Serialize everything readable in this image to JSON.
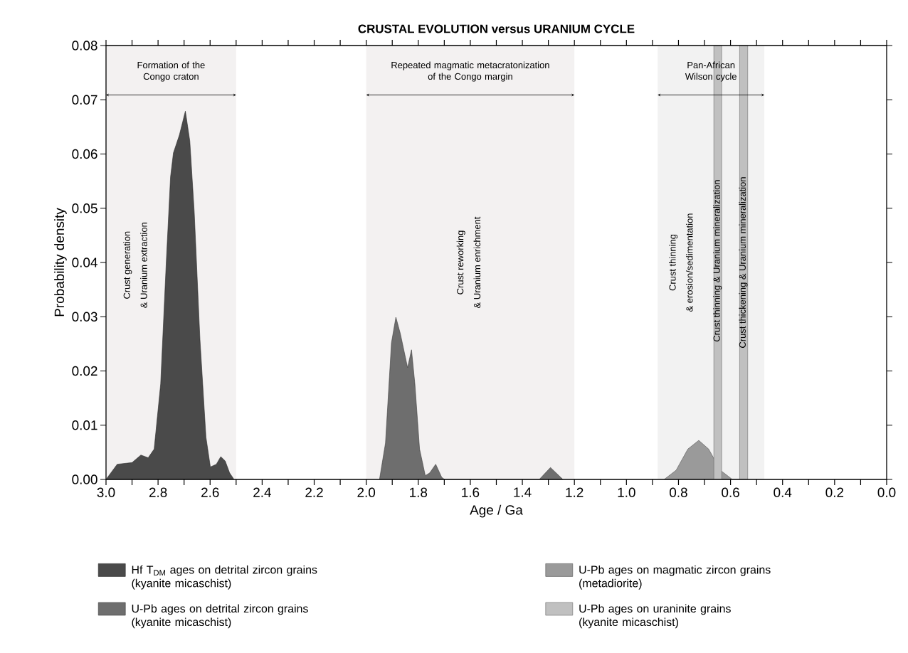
{
  "chart_data": {
    "type": "area",
    "title": "CRUSTAL EVOLUTION versus URANIUM CYCLE",
    "xlabel": "Age / Ga",
    "ylabel": "Probability density",
    "xlim": [
      3.0,
      0.0
    ],
    "ylim": [
      0,
      0.08
    ],
    "xticks": [
      {
        "value": 3.0,
        "label": "3.0"
      },
      {
        "value": 2.9,
        "label": null
      },
      {
        "value": 2.8,
        "label": "2.8"
      },
      {
        "value": 2.7,
        "label": null
      },
      {
        "value": 2.6,
        "label": "2.6"
      },
      {
        "value": 2.5,
        "label": null
      },
      {
        "value": 2.4,
        "label": "2.4"
      },
      {
        "value": 2.3,
        "label": null
      },
      {
        "value": 2.2,
        "label": "2.2"
      },
      {
        "value": 2.1,
        "label": null
      },
      {
        "value": 2.0,
        "label": "2.0"
      },
      {
        "value": 1.9,
        "label": null
      },
      {
        "value": 1.8,
        "label": "1.8"
      },
      {
        "value": 1.7,
        "label": null
      },
      {
        "value": 1.6,
        "label": "1.6"
      },
      {
        "value": 1.5,
        "label": null
      },
      {
        "value": 1.4,
        "label": "1.4"
      },
      {
        "value": 1.3,
        "label": null
      },
      {
        "value": 1.2,
        "label": "1.2"
      },
      {
        "value": 1.1,
        "label": null
      },
      {
        "value": 1.0,
        "label": "1.0"
      },
      {
        "value": 0.9,
        "label": null
      },
      {
        "value": 0.8,
        "label": "0.8"
      },
      {
        "value": 0.7,
        "label": null
      },
      {
        "value": 0.6,
        "label": "0.6"
      },
      {
        "value": 0.5,
        "label": null
      },
      {
        "value": 0.4,
        "label": "0.4"
      },
      {
        "value": 0.3,
        "label": null
      },
      {
        "value": 0.2,
        "label": "0.2"
      },
      {
        "value": 0.1,
        "label": null
      },
      {
        "value": 0.0,
        "label": "0.0"
      }
    ],
    "yticks": [
      {
        "value": 0,
        "label": "0.00"
      },
      {
        "value": 0.01,
        "label": "0.01"
      },
      {
        "value": 0.02,
        "label": "0.02"
      },
      {
        "value": 0.03,
        "label": "0.03"
      },
      {
        "value": 0.04,
        "label": "0.04"
      },
      {
        "value": 0.05,
        "label": "0.05"
      },
      {
        "value": 0.06,
        "label": "0.06"
      },
      {
        "value": 0.07,
        "label": "0.07"
      },
      {
        "value": 0.08,
        "label": "0.08"
      }
    ],
    "legend": "bottom",
    "series": [
      {
        "name": "Hf T$_{DM}$ ages on detrital zircon grains (kyanite micaschist)",
        "color": "#4a4a4a",
        "x": [
          3.0,
          2.957,
          2.9,
          2.866,
          2.838,
          2.815,
          2.79,
          2.769,
          2.752,
          2.741,
          2.718,
          2.695,
          2.678,
          2.661,
          2.639,
          2.616,
          2.599,
          2.576,
          2.559,
          2.542,
          2.525,
          2.508
        ],
        "values": [
          0,
          0.0028,
          0.0031,
          0.0045,
          0.004,
          0.0056,
          0.0176,
          0.0395,
          0.0558,
          0.0602,
          0.0635,
          0.0679,
          0.0624,
          0.0493,
          0.0258,
          0.0078,
          0.0023,
          0.0028,
          0.0042,
          0.0034,
          0.0012,
          0
        ]
      },
      {
        "name": "U-Pb ages on detrital zircon grains (kyanite micaschist)",
        "color": "#6e6e6e",
        "x": [
          1.949,
          1.926,
          1.903,
          1.886,
          1.869,
          1.841,
          1.826,
          1.813,
          1.795,
          1.773,
          1.756,
          1.733,
          1.71,
          1.699,
          1.335,
          1.292,
          1.244
        ],
        "values": [
          0,
          0.0067,
          0.0252,
          0.0299,
          0.0269,
          0.0206,
          0.0239,
          0.0176,
          0.0056,
          0.0007,
          0.0012,
          0.0028,
          0.0004,
          0,
          0,
          0.0022,
          0
        ]
      },
      {
        "name": "U-Pb ages on magmatic zircon grains (metadiorite)",
        "color": "#9a9a9a",
        "x": [
          0.855,
          0.809,
          0.764,
          0.722,
          0.684,
          0.639,
          0.593
        ],
        "values": [
          0,
          0.0017,
          0.0056,
          0.0072,
          0.0056,
          0.0017,
          0
        ]
      },
      {
        "name": "U-Pb ages on uraninite grains (kyanite micaschist)",
        "color": "#c0c0c0",
        "x": [
          0.664,
          0.664,
          0.634,
          0.634,
          0.565,
          0.565,
          0.534,
          0.534
        ],
        "values": [
          0,
          0.08,
          0.08,
          0,
          0,
          0.08,
          0.08,
          0
        ]
      }
    ],
    "bands": [
      {
        "axis": "x",
        "from": 3.0,
        "to": 2.5,
        "label": "Formation of the Congo craton",
        "color": "#f3f1f1"
      },
      {
        "axis": "x",
        "from": 2.0,
        "to": 1.2,
        "label": "Repeated magmatic metacratonization of the Congo margin",
        "color": "#f3f1f1"
      },
      {
        "axis": "x",
        "from": 0.88,
        "to": 0.47,
        "label": "Pan-African Wilson cycle",
        "color": "#f2f2f2"
      }
    ],
    "annotations": [
      "Crust generation",
      "& Uranium extraction",
      "Crust reworking",
      "& Uranium enrichment",
      "Crust thinning",
      "& erosion/sedimentation",
      "Crust thinning & Uranium mineralization",
      "Crust thickening & Uranium mineralization"
    ]
  }
}
